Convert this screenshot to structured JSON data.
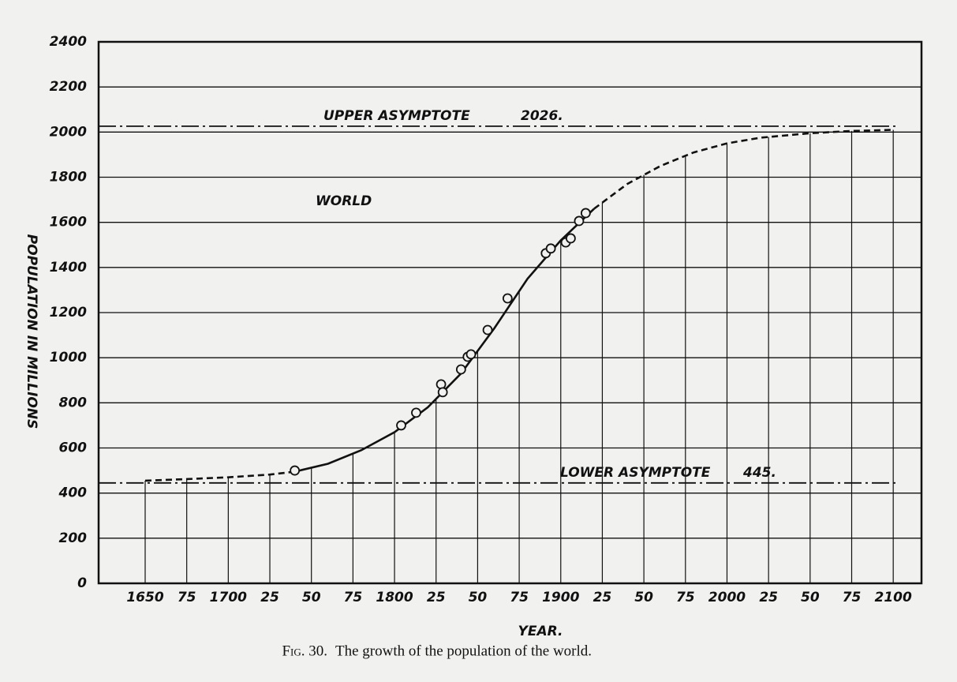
{
  "chart_data": {
    "type": "line",
    "ylabel": "POPULATION IN MILLIONS",
    "xlabel": "YEAR.",
    "caption_label": "Fig. 30.",
    "caption": "The growth of the population of the world.",
    "annotation": "WORLD",
    "color": "#111111",
    "grid": true,
    "xlim": [
      1622,
      2117
    ],
    "ylim": [
      0,
      2400
    ],
    "yticks": [
      0,
      200,
      400,
      600,
      800,
      1000,
      1200,
      1400,
      1600,
      1800,
      2000,
      2200,
      2400
    ],
    "xticks": [
      1650,
      {
        "value": 1675,
        "label": "75"
      },
      1700,
      {
        "value": 1725,
        "label": "25"
      },
      {
        "value": 1750,
        "label": "50"
      },
      {
        "value": 1775,
        "label": "75"
      },
      1800,
      {
        "value": 1825,
        "label": "25"
      },
      {
        "value": 1850,
        "label": "50"
      },
      {
        "value": 1875,
        "label": "75"
      },
      1900,
      {
        "value": 1925,
        "label": "25"
      },
      {
        "value": 1950,
        "label": "50"
      },
      {
        "value": 1975,
        "label": "75"
      },
      2000,
      {
        "value": 2025,
        "label": "25"
      },
      {
        "value": 2050,
        "label": "50"
      },
      {
        "value": 2075,
        "label": "75"
      },
      2100
    ],
    "series": [
      {
        "style": "dashed",
        "x": [
          1650,
          1675,
          1700,
          1725,
          1740
        ],
        "values": [
          455,
          462,
          470,
          482,
          495
        ]
      },
      {
        "style": "solid",
        "x": [
          1740,
          1760,
          1780,
          1800,
          1820,
          1840,
          1860,
          1880,
          1900,
          1920
        ],
        "values": [
          495,
          530,
          590,
          670,
          780,
          930,
          1130,
          1350,
          1520,
          1660
        ]
      },
      {
        "style": "dashed",
        "x": [
          1920,
          1940,
          1960,
          1980,
          2000,
          2020,
          2050,
          2075,
          2100
        ],
        "values": [
          1660,
          1770,
          1850,
          1910,
          1950,
          1975,
          1995,
          2005,
          2010
        ]
      }
    ],
    "observations": {
      "x": [
        1740,
        1804,
        1813,
        1828,
        1829,
        1840,
        1844,
        1846,
        1856,
        1868,
        1891,
        1894,
        1903,
        1906,
        1911,
        1915
      ],
      "values": [
        500,
        700,
        756,
        882,
        847,
        948,
        1004,
        1015,
        1123,
        1263,
        1463,
        1484,
        1511,
        1529,
        1606,
        1641
      ]
    },
    "asymptotes": [
      {
        "name": "UPPER ASYMPTOTE",
        "value": 2026,
        "value_label": "2026."
      },
      {
        "name": "LOWER ASYMPTOTE",
        "value": 445,
        "value_label": "445."
      }
    ]
  }
}
